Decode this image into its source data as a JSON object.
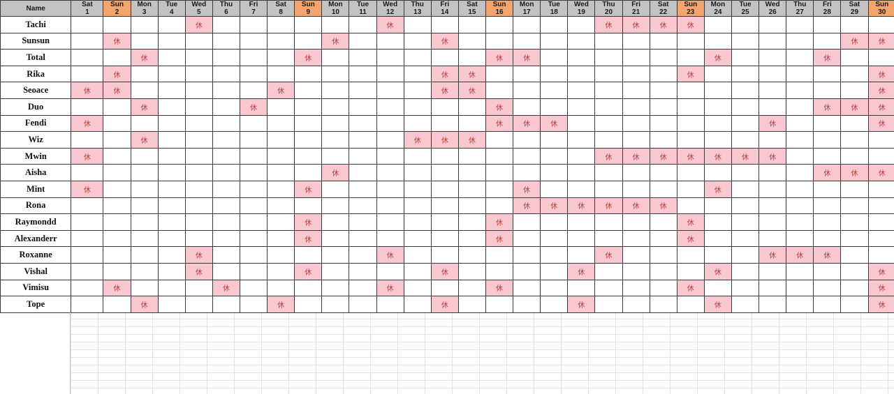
{
  "sheet": {
    "name_header": "Name",
    "off_mark": "休",
    "colors": {
      "header": "#c3c3c3",
      "sunday_header": "#f4a56e",
      "off_cell": "#f9c7d0"
    },
    "days": [
      {
        "dow": "Sat",
        "num": "1"
      },
      {
        "dow": "Sun",
        "num": "2"
      },
      {
        "dow": "Mon",
        "num": "3"
      },
      {
        "dow": "Tue",
        "num": "4"
      },
      {
        "dow": "Wed",
        "num": "5"
      },
      {
        "dow": "Thu",
        "num": "6"
      },
      {
        "dow": "Fri",
        "num": "7"
      },
      {
        "dow": "Sat",
        "num": "8"
      },
      {
        "dow": "Sun",
        "num": "9"
      },
      {
        "dow": "Mon",
        "num": "10"
      },
      {
        "dow": "Tue",
        "num": "11"
      },
      {
        "dow": "Wed",
        "num": "12"
      },
      {
        "dow": "Thu",
        "num": "13"
      },
      {
        "dow": "Fri",
        "num": "14"
      },
      {
        "dow": "Sat",
        "num": "15"
      },
      {
        "dow": "Sun",
        "num": "16"
      },
      {
        "dow": "Mon",
        "num": "17"
      },
      {
        "dow": "Tue",
        "num": "18"
      },
      {
        "dow": "Wed",
        "num": "19"
      },
      {
        "dow": "Thu",
        "num": "20"
      },
      {
        "dow": "Fri",
        "num": "21"
      },
      {
        "dow": "Sat",
        "num": "22"
      },
      {
        "dow": "Sun",
        "num": "23"
      },
      {
        "dow": "Mon",
        "num": "24"
      },
      {
        "dow": "Tue",
        "num": "25"
      },
      {
        "dow": "Wed",
        "num": "26"
      },
      {
        "dow": "Thu",
        "num": "27"
      },
      {
        "dow": "Fri",
        "num": "28"
      },
      {
        "dow": "Sat",
        "num": "29"
      },
      {
        "dow": "Sun",
        "num": "30"
      }
    ],
    "rows": [
      {
        "name": "Tachi",
        "off": [
          5,
          12,
          20,
          21,
          22,
          23
        ]
      },
      {
        "name": "Sunsun",
        "off": [
          2,
          10,
          14,
          29,
          30
        ]
      },
      {
        "name": "Total",
        "off": [
          3,
          9,
          16,
          17,
          24,
          28
        ]
      },
      {
        "name": "Rika",
        "off": [
          2,
          14,
          15,
          23,
          30
        ]
      },
      {
        "name": "Seoace",
        "off": [
          1,
          2,
          8,
          14,
          15,
          30
        ]
      },
      {
        "name": "Duo",
        "off": [
          3,
          7,
          16,
          28,
          29,
          30
        ]
      },
      {
        "name": "Fendi",
        "off": [
          1,
          16,
          17,
          18,
          26,
          30
        ]
      },
      {
        "name": "Wiz",
        "off": [
          3,
          13,
          14,
          15
        ]
      },
      {
        "name": "Mwin",
        "off": [
          1,
          20,
          21,
          22,
          23,
          24,
          25,
          26
        ]
      },
      {
        "name": "Aisha",
        "off": [
          10,
          28,
          29,
          30
        ]
      },
      {
        "name": "Mint",
        "off": [
          1,
          9,
          17,
          24
        ]
      },
      {
        "name": "Rona",
        "off": [
          17,
          18,
          19,
          20,
          21,
          22
        ]
      },
      {
        "name": "Raymondd",
        "off": [
          9,
          16,
          23
        ]
      },
      {
        "name": "Alexanderr",
        "off": [
          9,
          16,
          23
        ]
      },
      {
        "name": "Roxanne",
        "off": [
          5,
          12,
          20,
          26,
          27,
          28
        ]
      },
      {
        "name": "Vishal",
        "off": [
          5,
          9,
          14,
          19,
          24,
          30
        ]
      },
      {
        "name": "Vimisu",
        "off": [
          2,
          6,
          12,
          16,
          23,
          30
        ]
      },
      {
        "name": "Tope",
        "off": [
          3,
          8,
          14,
          19,
          24,
          30
        ]
      }
    ]
  }
}
